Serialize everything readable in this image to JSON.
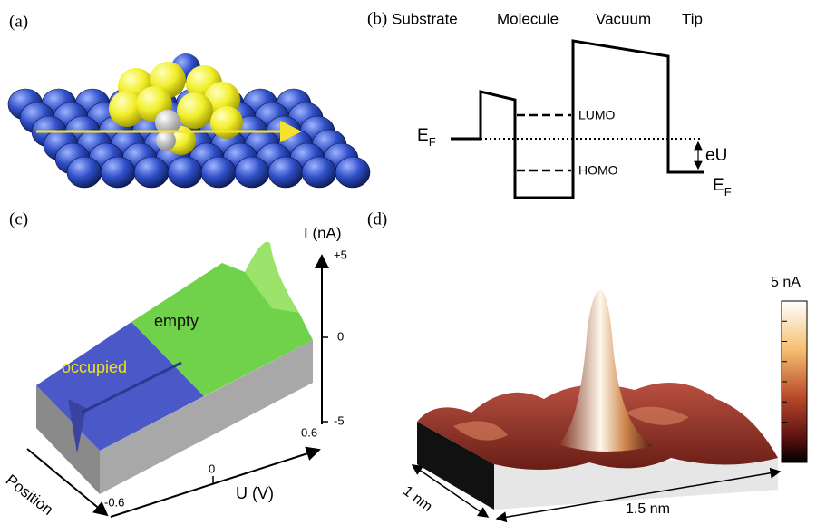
{
  "panels": {
    "a": {
      "label": "(a)"
    },
    "b": {
      "label": "(b)",
      "regions": [
        "Substrate",
        "Molecule",
        "Vacuum",
        "Tip"
      ],
      "levels": [
        "LUMO",
        "HOMO"
      ],
      "fermi_left": {
        "symbol": "E",
        "subscript": "F"
      },
      "fermi_right": {
        "symbol": "E",
        "subscript": "F"
      },
      "bias": "eU"
    },
    "c": {
      "label": "(c)",
      "current_axis": {
        "title": "I (nA)",
        "ticks": [
          "+5",
          "0",
          "-5"
        ]
      },
      "bias_axis": {
        "title": "U (V)",
        "ticks": [
          "-0.6",
          "0",
          "0.6"
        ]
      },
      "position_axis": "Position",
      "regions": [
        "empty",
        "occupied"
      ]
    },
    "d": {
      "label": "(d)",
      "colorbar_label": "5 nA",
      "scale_bars": [
        "1 nm",
        "1.5 nm"
      ]
    }
  }
}
